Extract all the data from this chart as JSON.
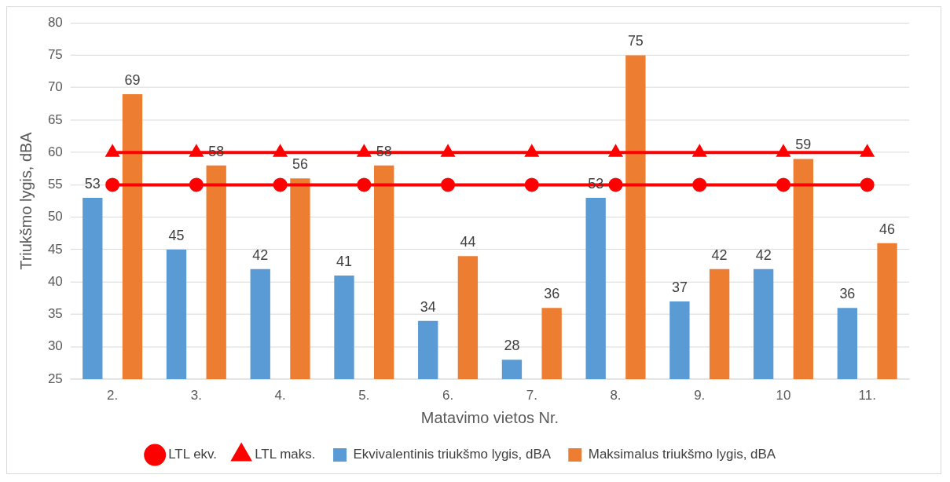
{
  "chart_data": {
    "type": "bar",
    "xlabel": "Matavimo vietos Nr.",
    "ylabel": "Triukšmo lygis, dBA",
    "categories": [
      "2.",
      "3.",
      "4.",
      "5.",
      "6.",
      "7.",
      "8.",
      "9.",
      "10",
      "11."
    ],
    "series": [
      {
        "name": "Ekvivalentinis triukšmo lygis, dBA",
        "color": "#5b9bd5",
        "values": [
          53,
          45,
          42,
          41,
          34,
          28,
          53,
          37,
          42,
          36
        ],
        "value_labels": [
          "53",
          "45",
          "42",
          "41",
          "34",
          "28",
          "53",
          "37",
          "42",
          "36"
        ]
      },
      {
        "name": "Maksimalus triukšmo lygis, dBA",
        "color": "#ed7d31",
        "values": [
          69,
          58,
          56,
          58,
          44,
          36,
          75,
          42,
          59,
          46
        ],
        "value_labels": [
          "69",
          "58",
          "56",
          "58",
          "44",
          "36",
          "75",
          "42",
          "59",
          "46"
        ]
      },
      {
        "name": "LTL ekv.",
        "type": "line",
        "color": "#ff0000",
        "marker": "circle",
        "values": [
          55,
          55,
          55,
          55,
          55,
          55,
          55,
          55,
          55,
          55
        ]
      },
      {
        "name": "LTL maks.",
        "type": "line",
        "color": "#ff0000",
        "marker": "triangle",
        "values": [
          60,
          60,
          60,
          60,
          60,
          60,
          60,
          60,
          60,
          60
        ]
      }
    ],
    "ylim": [
      25,
      80
    ],
    "yticks": [
      25,
      30,
      35,
      40,
      45,
      50,
      55,
      60,
      65,
      70,
      75,
      80
    ],
    "grid": "y",
    "legend": "bottom"
  }
}
